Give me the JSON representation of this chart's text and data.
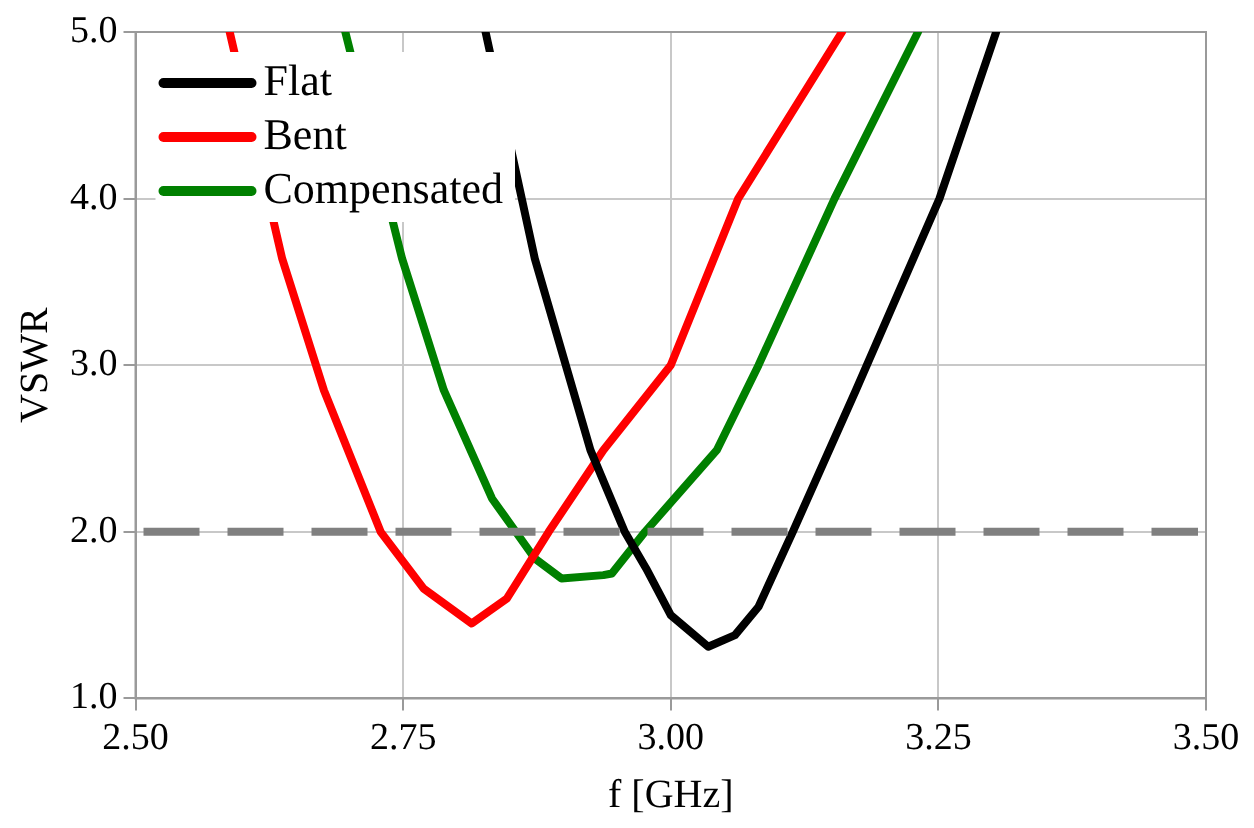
{
  "chart_data": {
    "type": "line",
    "xlabel": "f [GHz]",
    "ylabel": "VSWR",
    "xlim": [
      2.5,
      3.5
    ],
    "xticks": [
      {
        "value": 2.5,
        "label": "2.50"
      },
      2.75,
      {
        "value": 3.0,
        "label": "3.00"
      },
      3.25,
      {
        "value": 3.5,
        "label": "3.50"
      }
    ],
    "ylim": [
      1.0,
      5.0
    ],
    "yticks": [
      {
        "value": 1,
        "label": "1.0"
      },
      {
        "value": 2,
        "label": "2.0"
      },
      {
        "value": 3,
        "label": "3.0"
      },
      {
        "value": 4,
        "label": "4.0"
      },
      {
        "value": 5,
        "label": "5.0"
      }
    ],
    "grid": true,
    "legend": "top left",
    "marker": "none",
    "line_style": "solid",
    "series": [
      {
        "name": "Flat",
        "color": "#000000",
        "x": [
          2.827,
          2.873,
          2.925,
          2.957,
          2.977,
          3.0,
          3.035,
          3.06,
          3.082,
          3.114,
          3.173,
          3.251,
          3.304
        ],
        "values": [
          5.0,
          3.64,
          2.49,
          2.0,
          1.78,
          1.5,
          1.31,
          1.38,
          1.55,
          2.0,
          2.85,
          4.0,
          5.0
        ]
      },
      {
        "name": "Bent",
        "color": "#ff0000",
        "x": [
          2.588,
          2.637,
          2.676,
          2.729,
          2.769,
          2.814,
          2.847,
          2.886,
          2.937,
          3.0,
          3.063,
          3.16
        ],
        "values": [
          5.0,
          3.64,
          2.85,
          2.0,
          1.66,
          1.45,
          1.6,
          2.0,
          2.49,
          3.0,
          4.0,
          5.0
        ]
      },
      {
        "name": "Compensated",
        "color": "#008000",
        "x": [
          2.696,
          2.749,
          2.788,
          2.833,
          2.873,
          2.898,
          2.937,
          2.945,
          2.976,
          3.043,
          3.082,
          3.153,
          3.231
        ],
        "values": [
          5.0,
          3.64,
          2.85,
          2.2,
          1.84,
          1.72,
          1.74,
          1.75,
          2.0,
          2.49,
          3.0,
          4.0,
          5.0
        ]
      }
    ],
    "ref_lines": [
      {
        "axis": "y",
        "value": 2.0,
        "color": "#808080",
        "line_style": "dashed"
      }
    ]
  }
}
